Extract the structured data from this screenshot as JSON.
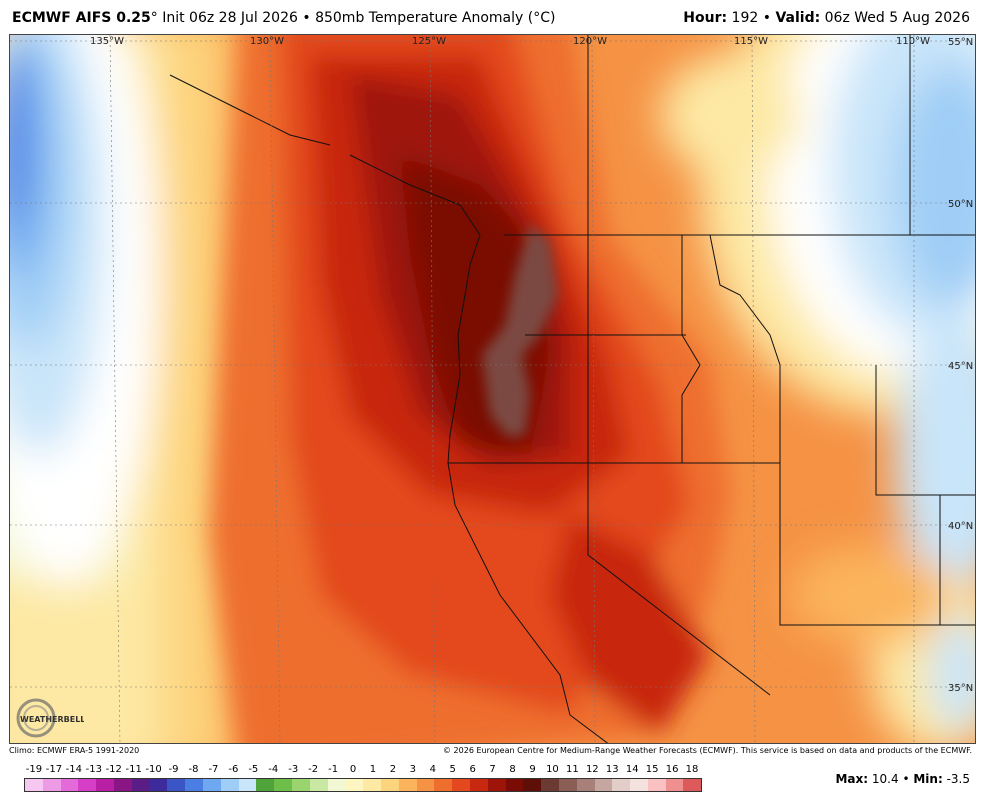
{
  "header": {
    "model": "ECMWF AIFS 0.25",
    "degree": "°",
    "init": "Init 06z 28 Jul 2026",
    "bullet": "•",
    "product": "850mb Temperature Anomaly (°C)",
    "hour_label": "Hour:",
    "hour_value": "192",
    "valid_label": "Valid:",
    "valid_value": "06z Wed 5 Aug 2026"
  },
  "map": {
    "lon_labels": [
      "135°W",
      "130°W",
      "125°W",
      "120°W",
      "115°W",
      "110°W"
    ],
    "lat_labels": [
      "55°N",
      "50°N",
      "45°N",
      "40°N",
      "35°N"
    ],
    "hot_spot_color": "#7b4a42",
    "peak_color": "#6b0c06",
    "cold_color": "#2a7de0"
  },
  "footer": {
    "climo": "Climo: ECMWF ERA-5 1991-2020",
    "copyright": "© 2026 European Centre for Medium-Range Weather Forecasts (ECMWF). This service is based on data and products of the ECMWF."
  },
  "logo": {
    "text": "WEATHERBELL"
  },
  "legend": {
    "labels": [
      "-19",
      "-17",
      "-14",
      "-13",
      "-12",
      "-11",
      "-10",
      "-9",
      "-8",
      "-7",
      "-6",
      "-5",
      "-4",
      "-3",
      "-2",
      "-1",
      "0",
      "1",
      "2",
      "3",
      "4",
      "5",
      "6",
      "7",
      "8",
      "9",
      "10",
      "11",
      "12",
      "13",
      "14",
      "15",
      "16",
      "18"
    ],
    "colors": [
      "#f6c7f0",
      "#ee9be6",
      "#e46ad9",
      "#d63ec8",
      "#b81fa5",
      "#8a1685",
      "#5a1c87",
      "#3d2b9c",
      "#3b55c7",
      "#4a7ee2",
      "#6ea8f0",
      "#9fcdf6",
      "#c9e5f9",
      "#4ea33a",
      "#6dbf4a",
      "#9bd36f",
      "#c8e8a4",
      "#f3f8d4",
      "#fdf6c3",
      "#fde9a4",
      "#fdd47e",
      "#fbb45c",
      "#f59244",
      "#ee6e2e",
      "#e3481e",
      "#c82810",
      "#9f1408",
      "#7a0c05",
      "#5e1008",
      "#6b3a33",
      "#8a5d55",
      "#a8807a",
      "#c6a6a0",
      "#e3cdc8",
      "#f3e2de",
      "#f9c1c1",
      "#ef8f8f",
      "#dc5a5a"
    ],
    "max_label": "Max:",
    "max_value": "10.4",
    "min_label": "Min:",
    "min_value": "-3.5"
  }
}
